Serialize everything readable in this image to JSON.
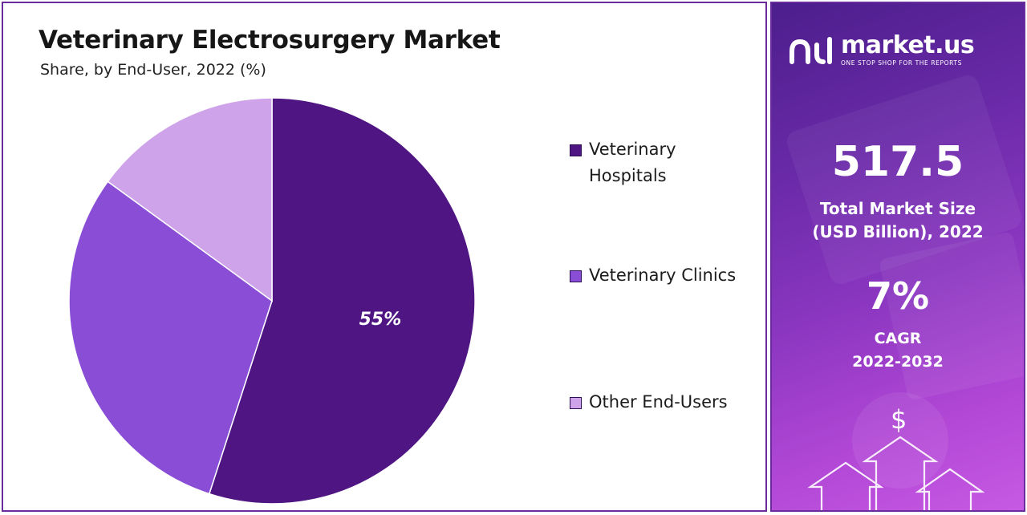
{
  "title": "Veterinary Electrosurgery Market",
  "subtitle": "Share, by End-User, 2022 (%)",
  "colors": {
    "veterinary_hospitals": "#4e1583",
    "veterinary_clinics": "#8a4ed6",
    "other_end_users": "#cfa3ea",
    "frame": "#6a2b9c"
  },
  "chart_data": {
    "type": "pie",
    "title": "Veterinary Electrosurgery Market",
    "subtitle": "Share, by End-User, 2022 (%)",
    "categories": [
      "Veterinary Hospitals",
      "Veterinary Clinics",
      "Other End-Users"
    ],
    "values": [
      55,
      30,
      15
    ],
    "data_labels": [
      "55%",
      "",
      ""
    ],
    "start_angle_deg": 0,
    "direction": "clockwise",
    "legend_position": "right"
  },
  "legend": {
    "items": [
      {
        "label": "Veterinary Hospitals",
        "lines": [
          "Veterinary",
          "Hospitals"
        ],
        "color": "#4e1583"
      },
      {
        "label": "Veterinary Clinics",
        "lines": [
          "Veterinary Clinics"
        ],
        "color": "#8a4ed6"
      },
      {
        "label": "Other End-Users",
        "lines": [
          "Other End-Users"
        ],
        "color": "#cfa3ea"
      }
    ]
  },
  "sidebar": {
    "logo": {
      "name": "market.us",
      "tagline": "ONE STOP SHOP FOR THE REPORTS",
      "icon": "market-us-logo-icon"
    },
    "market_size": {
      "value": "517.5",
      "label_line1": "Total Market Size",
      "label_line2": "(USD Billion), 2022"
    },
    "cagr": {
      "value": "7%",
      "label_line1": "CAGR",
      "label_line2": "2022-2032"
    },
    "decoration": {
      "symbol": "$",
      "icon": "growth-arrows-icon"
    }
  }
}
